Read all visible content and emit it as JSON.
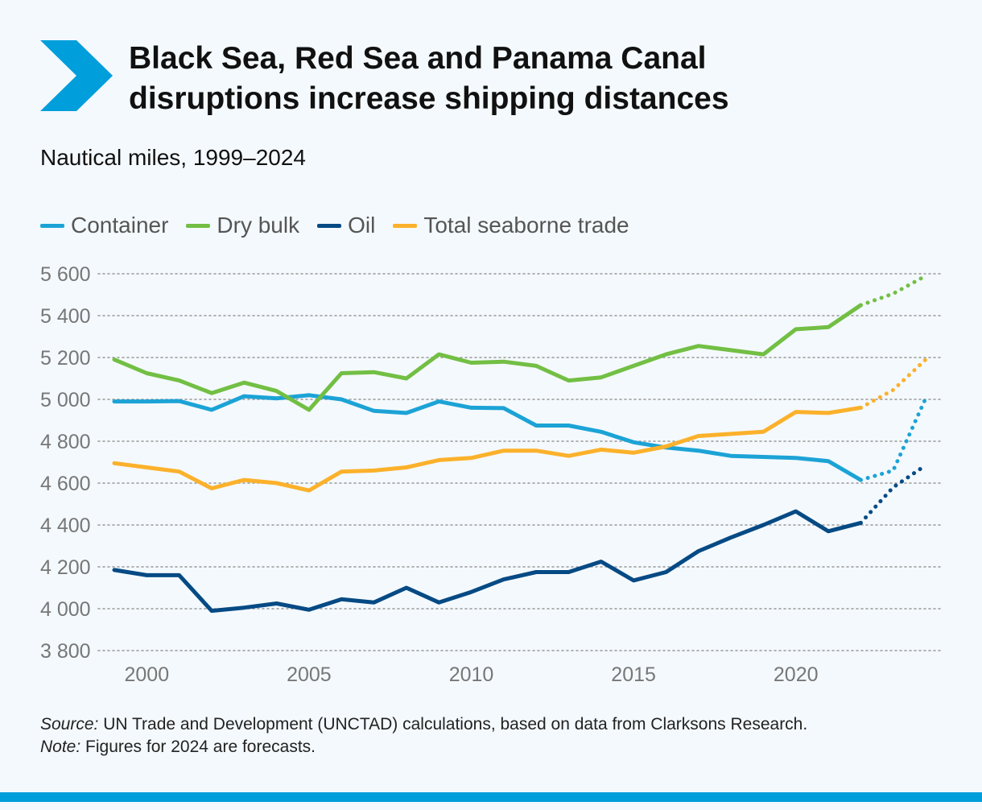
{
  "header": {
    "title_line1": "Black Sea, Red Sea and Panama Canal",
    "title_line2": "disruptions increase shipping distances",
    "subtitle": "Nautical miles, 1999–2024"
  },
  "footer": {
    "source_label": "Source:",
    "source_text": " UN Trade and Development (UNCTAD) calculations, based on data from Clarksons Research.",
    "note_label": "Note:",
    "note_text": " Figures for 2024 are forecasts."
  },
  "colors": {
    "accent": "#009edb",
    "container": "#1ca3d6",
    "dry_bulk": "#72bf44",
    "oil": "#054a84",
    "total": "#fbb12b",
    "grid": "#9a9a9a",
    "axis_text": "#777777"
  },
  "icons": {
    "logo": "chevron-right-icon"
  },
  "chart_data": {
    "type": "line",
    "x": [
      1999,
      2000,
      2001,
      2002,
      2003,
      2004,
      2005,
      2006,
      2007,
      2008,
      2009,
      2010,
      2011,
      2012,
      2013,
      2014,
      2015,
      2016,
      2017,
      2018,
      2019,
      2020,
      2021,
      2022,
      2023,
      2024
    ],
    "forecast_from_index": 24,
    "series": [
      {
        "name": "Container",
        "color": "#1ca3d6",
        "values": [
          4990,
          4990,
          4992,
          4950,
          5015,
          5005,
          5020,
          5000,
          4945,
          4935,
          4990,
          4960,
          4958,
          4875,
          4875,
          4845,
          4795,
          4770,
          4755,
          4730,
          4725,
          4720,
          4705,
          4615,
          4660,
          5005
        ]
      },
      {
        "name": "Dry bulk",
        "color": "#72bf44",
        "values": [
          5190,
          5125,
          5090,
          5030,
          5080,
          5040,
          4950,
          5125,
          5130,
          5100,
          5215,
          5175,
          5180,
          5160,
          5090,
          5105,
          5160,
          5215,
          5255,
          5235,
          5215,
          5335,
          5345,
          5450,
          5505,
          5590
        ]
      },
      {
        "name": "Oil",
        "color": "#054a84",
        "values": [
          4185,
          4160,
          4160,
          3990,
          4005,
          4025,
          3995,
          4045,
          4030,
          4100,
          4030,
          4080,
          4140,
          4175,
          4175,
          4225,
          4135,
          4175,
          4275,
          4340,
          4400,
          4465,
          4370,
          4410,
          4580,
          4685
        ]
      },
      {
        "name": "Total seaborne trade",
        "color": "#fbb12b",
        "values": [
          4695,
          4675,
          4655,
          4575,
          4615,
          4600,
          4565,
          4655,
          4660,
          4675,
          4710,
          4720,
          4755,
          4755,
          4730,
          4760,
          4745,
          4775,
          4825,
          4835,
          4845,
          4940,
          4935,
          4960,
          5045,
          5190
        ]
      }
    ],
    "xticks": [
      2000,
      2005,
      2010,
      2015,
      2020
    ],
    "xtick_labels": [
      "2000",
      "2005",
      "2010",
      "2015",
      "2020"
    ],
    "yticks": [
      3800,
      4000,
      4200,
      4400,
      4600,
      4800,
      5000,
      5200,
      5400,
      5600
    ],
    "ytick_labels": [
      "3 800",
      "4 000",
      "4 200",
      "4 400",
      "4 600",
      "4 800",
      "5 000",
      "5 200",
      "5 400",
      "5 600"
    ],
    "xlim": [
      1999,
      2024
    ],
    "ylim": [
      3800,
      5600
    ],
    "grid": "horizontal dotted",
    "legend": "top-left"
  }
}
